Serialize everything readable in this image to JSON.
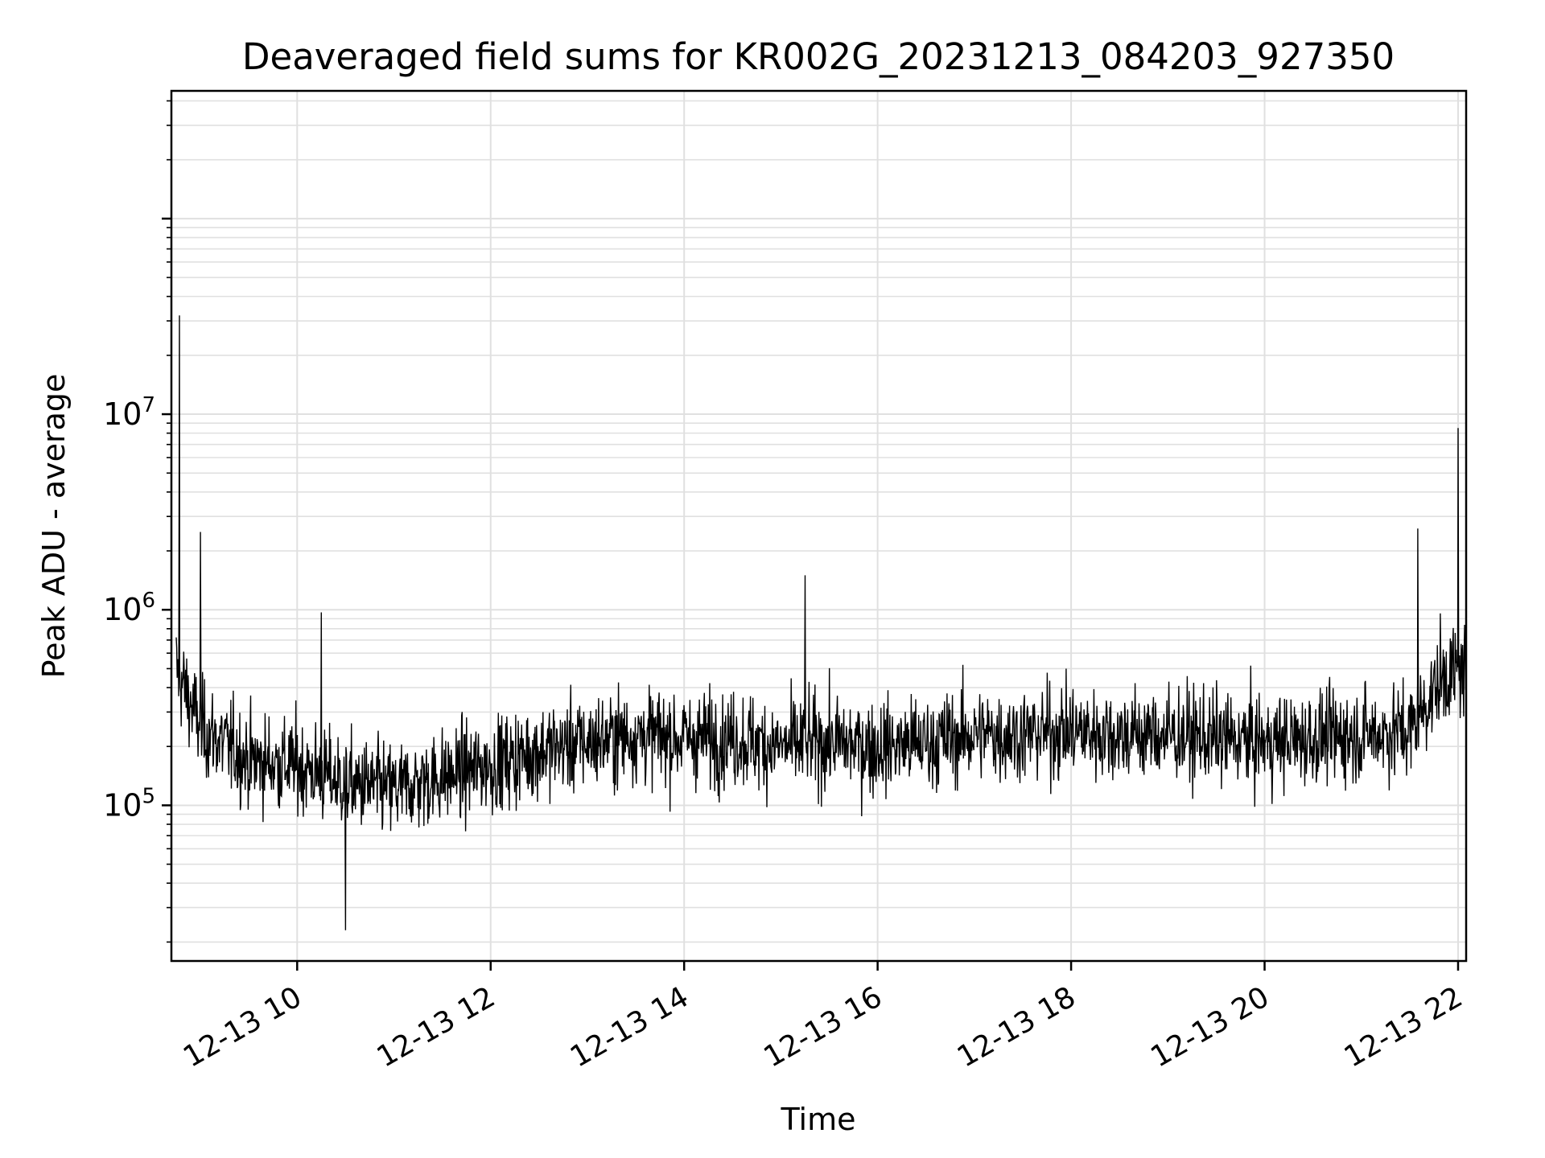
{
  "chart_data": {
    "type": "line",
    "title": "Deaveraged field sums for KR002G_20231213_084203_927350",
    "xlabel": "Time",
    "ylabel": "Peak ADU - average",
    "x_range": [
      "2023-12-13 08:42",
      "2023-12-13 22:05"
    ],
    "xticks": [
      {
        "t": "2023-12-13 10:00",
        "label": "12-13 10"
      },
      {
        "t": "2023-12-13 12:00",
        "label": "12-13 12"
      },
      {
        "t": "2023-12-13 14:00",
        "label": "12-13 14"
      },
      {
        "t": "2023-12-13 16:00",
        "label": "12-13 16"
      },
      {
        "t": "2023-12-13 18:00",
        "label": "12-13 18"
      },
      {
        "t": "2023-12-13 20:00",
        "label": "12-13 20"
      },
      {
        "t": "2023-12-13 22:00",
        "label": "12-13 22"
      }
    ],
    "y_scale": "log",
    "ylim": [
      16000,
      450000000
    ],
    "yticks": [
      {
        "value": 100000,
        "base": "10",
        "exp": "5"
      },
      {
        "value": 1000000,
        "base": "10",
        "exp": "6"
      },
      {
        "value": 10000000,
        "base": "10",
        "exp": "7"
      }
    ],
    "grid": true,
    "line_color": "#000000",
    "grid_color": "#e0e0e0",
    "series": [
      {
        "x": [
          "2023-12-13 08:45",
          "2023-12-13 09:00",
          "2023-12-13 09:30",
          "2023-12-13 10:00",
          "2023-12-13 10:30",
          "2023-12-13 11:00",
          "2023-12-13 11:30",
          "2023-12-13 12:00",
          "2023-12-13 12:30",
          "2023-12-13 13:00",
          "2023-12-13 13:30",
          "2023-12-13 14:00",
          "2023-12-13 14:30",
          "2023-12-13 15:00",
          "2023-12-13 15:30",
          "2023-12-13 16:00",
          "2023-12-13 16:30",
          "2023-12-13 17:00",
          "2023-12-13 17:30",
          "2023-12-13 18:00",
          "2023-12-13 18:30",
          "2023-12-13 19:00",
          "2023-12-13 19:30",
          "2023-12-13 20:00",
          "2023-12-13 20:30",
          "2023-12-13 21:00",
          "2023-12-13 21:30",
          "2023-12-13 21:50",
          "2023-12-13 22:05"
        ],
        "values": [
          500000,
          250000,
          170000,
          160000,
          130000,
          120000,
          140000,
          160000,
          190000,
          210000,
          230000,
          220000,
          220000,
          200000,
          210000,
          200000,
          210000,
          230000,
          230000,
          240000,
          230000,
          230000,
          220000,
          210000,
          220000,
          230000,
          240000,
          450000,
          500000
        ],
        "spikes": [
          {
            "t": "2023-12-13 08:47",
            "value": 32000000
          },
          {
            "t": "2023-12-13 09:00",
            "value": 2500000
          },
          {
            "t": "2023-12-13 10:15",
            "value": 970000
          },
          {
            "t": "2023-12-13 10:30",
            "value": 23000
          },
          {
            "t": "2023-12-13 15:15",
            "value": 1500000
          },
          {
            "t": "2023-12-13 21:35",
            "value": 2600000
          },
          {
            "t": "2023-12-13 22:00",
            "value": 8500000
          }
        ]
      }
    ]
  }
}
